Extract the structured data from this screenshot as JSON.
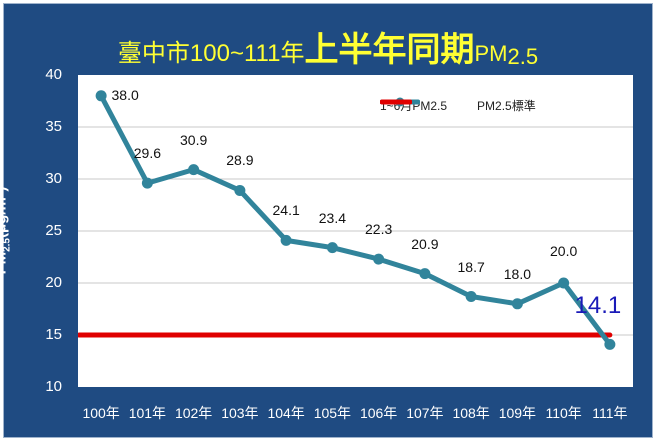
{
  "title": {
    "part1": "臺中市100~111年",
    "part2": "上半年同期",
    "part3": "PM",
    "sub": "2.5"
  },
  "y_axis": {
    "label_main": "PM",
    "label_sub": "2.5",
    "label_unit": "(μg/m",
    "label_sup": "3",
    "label_close": ")",
    "ticks": [
      "40",
      "35",
      "30",
      "25",
      "20",
      "15",
      "10"
    ]
  },
  "legend": {
    "series1": "1~6月PM2.5",
    "series2": "PM2.5標準"
  },
  "colors": {
    "frame": "#1f4b82",
    "title": "#ffff33",
    "line": "#31849b",
    "standard": "#e00000",
    "last_label": "#1a1ab8"
  },
  "chart_data": {
    "type": "line",
    "title": "臺中市100~111年上半年同期PM2.5",
    "xlabel": "",
    "ylabel": "PM2.5(μg/m3)",
    "ylim": [
      10,
      40
    ],
    "yticks": [
      10,
      15,
      20,
      25,
      30,
      35,
      40
    ],
    "grid": true,
    "legend_position": "top-right",
    "categories": [
      "100年",
      "101年",
      "102年",
      "103年",
      "104年",
      "105年",
      "106年",
      "107年",
      "108年",
      "109年",
      "110年",
      "111年"
    ],
    "series": [
      {
        "name": "1~6月PM2.5",
        "values": [
          38.0,
          29.6,
          30.9,
          28.9,
          24.1,
          23.4,
          22.3,
          20.9,
          18.7,
          18.0,
          20.0,
          14.1
        ]
      },
      {
        "name": "PM2.5標準",
        "values": [
          15,
          15,
          15,
          15,
          15,
          15,
          15,
          15,
          15,
          15,
          15,
          15
        ]
      }
    ],
    "data_labels": [
      "38.0",
      "29.6",
      "30.9",
      "28.9",
      "24.1",
      "23.4",
      "22.3",
      "20.9",
      "18.7",
      "18.0",
      "20.0",
      "14.1"
    ]
  }
}
